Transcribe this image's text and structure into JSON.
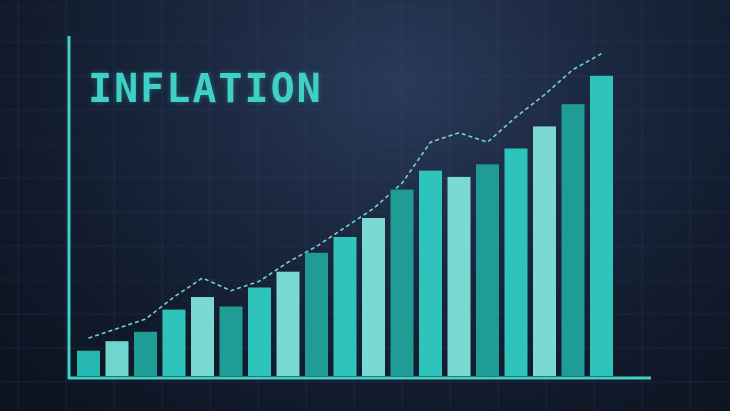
{
  "chart_data": {
    "type": "bar",
    "title": "INFLATION",
    "xlabel": "",
    "ylabel": "",
    "ylim": [
      0,
      100
    ],
    "grid": true,
    "legend": "none",
    "values": [
      8,
      11,
      14,
      21,
      25,
      22,
      28,
      33,
      39,
      44,
      50,
      59,
      65,
      63,
      67,
      72,
      79,
      86,
      95
    ],
    "trend_values": [
      12,
      15,
      18,
      25,
      31,
      27,
      30,
      36,
      41,
      47,
      53,
      61,
      74,
      77,
      74,
      82,
      89,
      97,
      102
    ],
    "colors": {
      "bars": [
        "#26b8b0",
        "#6fd6cf",
        "#1f9c96",
        "#2ec4bb",
        "#7ad9d2",
        "#1f9c96",
        "#2ec4bb",
        "#7ad9d2",
        "#1f9c96",
        "#2ec4bb",
        "#7ad9d2",
        "#1f9c96",
        "#2ec4bb",
        "#7ad9d2",
        "#1f9c96",
        "#2ec4bb",
        "#7ad9d2",
        "#1f9c96",
        "#2ec4bb"
      ],
      "axis": "#3fd1c8",
      "trend": "#7fe6e0",
      "grid": "#4a5a78"
    }
  }
}
